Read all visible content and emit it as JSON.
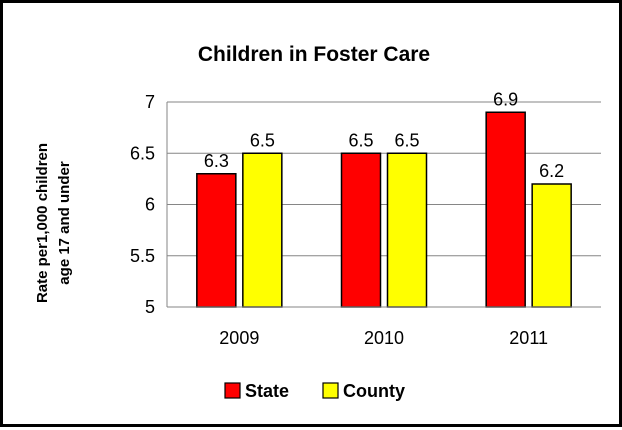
{
  "chart_data": {
    "type": "bar",
    "title": "Children in Foster Care",
    "ylabel_line1": "Rate per1,000 children",
    "ylabel_line2": "age 17 and under",
    "xlabel": "",
    "categories": [
      "2009",
      "2010",
      "2011"
    ],
    "series": [
      {
        "name": "State",
        "color": "#ff0000",
        "values": [
          6.3,
          6.5,
          6.9
        ],
        "labels": [
          "6.3",
          "6.5",
          "6.9"
        ]
      },
      {
        "name": "County",
        "color": "#ffff00",
        "values": [
          6.5,
          6.5,
          6.2
        ],
        "labels": [
          "6.5",
          "6.5",
          "6.2"
        ]
      }
    ],
    "ylim": [
      5,
      7
    ],
    "yticks": [
      "5",
      "5.5",
      "6",
      "6.5",
      "7"
    ],
    "grid": true,
    "legend_position": "bottom"
  }
}
